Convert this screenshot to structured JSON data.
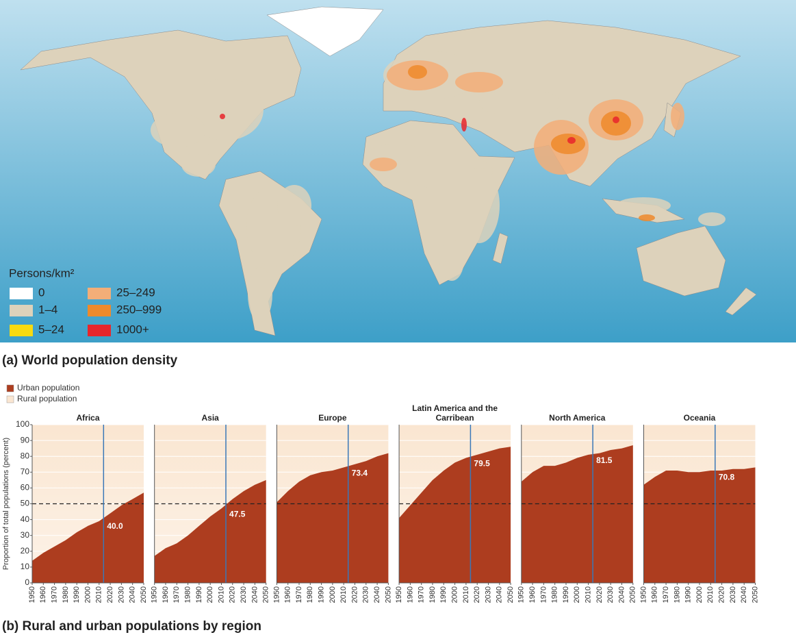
{
  "map": {
    "legend_title": "Persons/km²",
    "legend": [
      {
        "label": "0",
        "color": "#ffffff"
      },
      {
        "label": "1–4",
        "color": "#ddd2bb"
      },
      {
        "label": "5–24",
        "color": "#f8da10"
      },
      {
        "label": "25–249",
        "color": "#f3ae78"
      },
      {
        "label": "250–999",
        "color": "#ee8a2c"
      },
      {
        "label": "1000+",
        "color": "#e7262b"
      }
    ],
    "caption": "(a) World population density"
  },
  "panel_b": {
    "legend": [
      {
        "name": "Urban population",
        "color": "#ad3d1f"
      },
      {
        "name": "Rural population",
        "color": "#fae6d1"
      }
    ],
    "ylabel": "Proportion of total populations (percent)",
    "caption": "(b) Rural and urban populations by region"
  },
  "chart_data": [
    {
      "type": "area",
      "title": "Africa",
      "x": [
        1950,
        1960,
        1970,
        1980,
        1990,
        2000,
        2010,
        2020,
        2030,
        2040,
        2050
      ],
      "values": [
        14,
        19,
        23,
        27,
        32,
        36,
        39,
        44,
        49,
        53,
        57
      ],
      "xlim": [
        1950,
        2050
      ],
      "ylim": [
        0,
        100
      ],
      "xticks": [
        1950,
        1960,
        1970,
        1980,
        1990,
        2000,
        2010,
        2020,
        2030,
        2040,
        2050
      ],
      "yticks": [
        0,
        10,
        20,
        30,
        40,
        50,
        60,
        70,
        80,
        90,
        100
      ],
      "hline": 50,
      "marker": {
        "x": 2014,
        "value": 40,
        "label": "40.0"
      }
    },
    {
      "type": "area",
      "title": "Asia",
      "x": [
        1950,
        1960,
        1970,
        1980,
        1990,
        2000,
        2010,
        2020,
        2030,
        2040,
        2050
      ],
      "values": [
        17,
        22,
        25,
        30,
        36,
        42,
        47,
        53,
        58,
        62,
        65
      ],
      "xlim": [
        1950,
        2050
      ],
      "ylim": [
        0,
        100
      ],
      "xticks": [
        1950,
        1960,
        1970,
        1980,
        1990,
        2000,
        2010,
        2020,
        2030,
        2040,
        2050
      ],
      "yticks": [
        0,
        10,
        20,
        30,
        40,
        50,
        60,
        70,
        80,
        90,
        100
      ],
      "hline": 50,
      "marker": {
        "x": 2014,
        "value": 47.5,
        "label": "47.5"
      }
    },
    {
      "type": "area",
      "title": "Europe",
      "x": [
        1950,
        1960,
        1970,
        1980,
        1990,
        2000,
        2010,
        2020,
        2030,
        2040,
        2050
      ],
      "values": [
        51,
        58,
        64,
        68,
        70,
        71,
        73,
        75,
        77,
        80,
        82
      ],
      "xlim": [
        1950,
        2050
      ],
      "ylim": [
        0,
        100
      ],
      "xticks": [
        1950,
        1960,
        1970,
        1980,
        1990,
        2000,
        2010,
        2020,
        2030,
        2040,
        2050
      ],
      "yticks": [
        0,
        10,
        20,
        30,
        40,
        50,
        60,
        70,
        80,
        90,
        100
      ],
      "hline": 50,
      "marker": {
        "x": 2014,
        "value": 73.4,
        "label": "73.4"
      }
    },
    {
      "type": "area",
      "title": "Latin America and the Carribean",
      "x": [
        1950,
        1960,
        1970,
        1980,
        1990,
        2000,
        2010,
        2020,
        2030,
        2040,
        2050
      ],
      "values": [
        41,
        49,
        57,
        65,
        71,
        76,
        79,
        81,
        83,
        85,
        86
      ],
      "xlim": [
        1950,
        2050
      ],
      "ylim": [
        0,
        100
      ],
      "xticks": [
        1950,
        1960,
        1970,
        1980,
        1990,
        2000,
        2010,
        2020,
        2030,
        2040,
        2050
      ],
      "yticks": [
        0,
        10,
        20,
        30,
        40,
        50,
        60,
        70,
        80,
        90,
        100
      ],
      "hline": 50,
      "marker": {
        "x": 2014,
        "value": 79.5,
        "label": "79.5"
      }
    },
    {
      "type": "area",
      "title": "North America",
      "x": [
        1950,
        1960,
        1970,
        1980,
        1990,
        2000,
        2010,
        2020,
        2030,
        2040,
        2050
      ],
      "values": [
        64,
        70,
        74,
        74,
        76,
        79,
        81,
        82,
        84,
        85,
        87
      ],
      "xlim": [
        1950,
        2050
      ],
      "ylim": [
        0,
        100
      ],
      "xticks": [
        1950,
        1960,
        1970,
        1980,
        1990,
        2000,
        2010,
        2020,
        2030,
        2040,
        2050
      ],
      "yticks": [
        0,
        10,
        20,
        30,
        40,
        50,
        60,
        70,
        80,
        90,
        100
      ],
      "hline": 50,
      "marker": {
        "x": 2014,
        "value": 81.5,
        "label": "81.5"
      }
    },
    {
      "type": "area",
      "title": "Oceania",
      "x": [
        1950,
        1960,
        1970,
        1980,
        1990,
        2000,
        2010,
        2020,
        2030,
        2040,
        2050
      ],
      "values": [
        62,
        67,
        71,
        71,
        70,
        70,
        71,
        71,
        72,
        72,
        73
      ],
      "xlim": [
        1950,
        2050
      ],
      "ylim": [
        0,
        100
      ],
      "xticks": [
        1950,
        1960,
        1970,
        1980,
        1990,
        2000,
        2010,
        2020,
        2030,
        2040,
        2050
      ],
      "yticks": [
        0,
        10,
        20,
        30,
        40,
        50,
        60,
        70,
        80,
        90,
        100
      ],
      "hline": 50,
      "marker": {
        "x": 2014,
        "value": 70.8,
        "label": "70.8"
      }
    }
  ]
}
